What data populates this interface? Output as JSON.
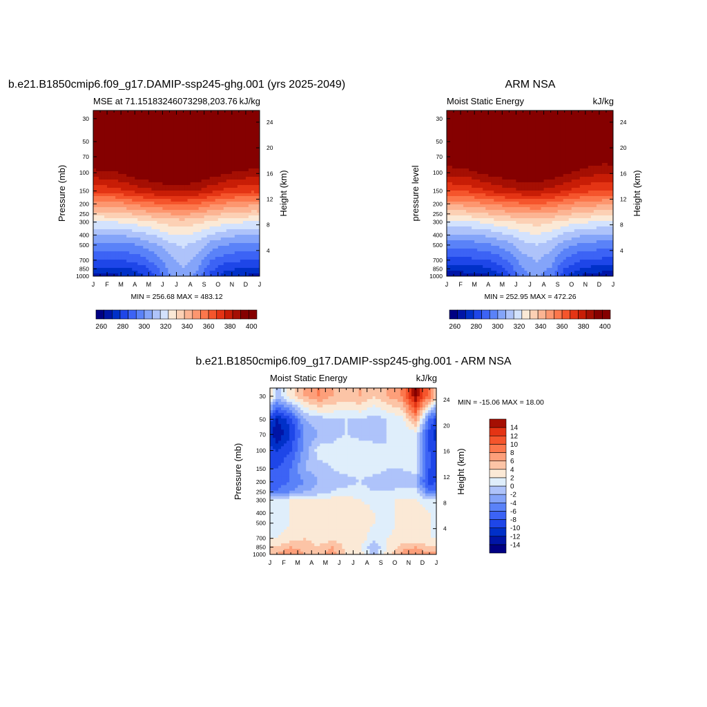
{
  "chart_data": [
    {
      "type": "heatmap",
      "title": "b.e21.B1850cmip6.f09_g17.DAMIP-ssp245-ghg.001 (yrs 2025-2049)",
      "left_subtitle": "MSE at 71.15183246073298,203.76",
      "right_subtitle": "kJ/kg",
      "ylabel": "Pressure (mb)",
      "ylabel_right": "Height (km)",
      "x_ticks": [
        "J",
        "F",
        "M",
        "A",
        "M",
        "J",
        "J",
        "A",
        "S",
        "O",
        "N",
        "D",
        "J"
      ],
      "y_ticks": [
        30,
        50,
        70,
        100,
        150,
        200,
        250,
        300,
        400,
        500,
        700,
        850,
        1000
      ],
      "y_ticks_right": [
        24,
        20,
        16,
        12,
        8,
        4
      ],
      "ylim": [
        1000,
        25
      ],
      "min_max_text": "MIN = 256.68  MAX = 483.12",
      "colorbar": {
        "orientation": "horizontal",
        "levels": [
          255,
          262.5,
          270,
          277.5,
          285,
          292.5,
          300,
          307.5,
          315,
          322.5,
          330,
          337.5,
          345,
          352.5,
          360,
          367.5,
          375,
          382.5,
          390,
          397.5,
          405
        ],
        "labels": [
          "260",
          "280",
          "300",
          "320",
          "340",
          "360",
          "380",
          "400"
        ]
      },
      "months": [
        "Jan",
        "Feb",
        "Mar",
        "Apr",
        "May",
        "Jun",
        "Jul",
        "Aug",
        "Sep",
        "Oct",
        "Nov",
        "Dec"
      ],
      "pressure_levels": [
        30,
        50,
        70,
        100,
        150,
        200,
        250,
        300,
        400,
        500,
        700,
        850,
        1000
      ],
      "values": [
        [
          423,
          425,
          430,
          432,
          433,
          434,
          434,
          432,
          430,
          428,
          425,
          423
        ],
        [
          410,
          412,
          415,
          418,
          420,
          421,
          421,
          419,
          416,
          413,
          410,
          409
        ],
        [
          401,
          402,
          406,
          409,
          411,
          413,
          413,
          411,
          407,
          404,
          401,
          400
        ],
        [
          388,
          389,
          393,
          397,
          399,
          401,
          401,
          399,
          395,
          391,
          389,
          387
        ],
        [
          370,
          371,
          375,
          379,
          382,
          384,
          384,
          382,
          377,
          373,
          370,
          369
        ],
        [
          348,
          349,
          352,
          356,
          359,
          361,
          362,
          360,
          355,
          351,
          349,
          347
        ],
        [
          334,
          335,
          337,
          340,
          343,
          345,
          346,
          344,
          340,
          337,
          335,
          334
        ],
        [
          322,
          322,
          324,
          327,
          330,
          333,
          334,
          332,
          328,
          325,
          323,
          322
        ],
        [
          307,
          307,
          309,
          312,
          316,
          321,
          323,
          320,
          314,
          310,
          308,
          307
        ],
        [
          297,
          297,
          298,
          301,
          306,
          313,
          316,
          312,
          304,
          300,
          298,
          297
        ],
        [
          285,
          285,
          286,
          289,
          296,
          305,
          310,
          305,
          293,
          288,
          286,
          285
        ],
        [
          276,
          276,
          277,
          281,
          290,
          302,
          307,
          301,
          287,
          280,
          277,
          276
        ],
        [
          268,
          268,
          270,
          275,
          286,
          299,
          304,
          298,
          282,
          273,
          270,
          268
        ]
      ]
    },
    {
      "type": "heatmap",
      "title": "ARM NSA",
      "left_subtitle": "Moist Static Energy",
      "right_subtitle": "kJ/kg",
      "ylabel": "pressure level",
      "ylabel_right": "Height (km)",
      "x_ticks": [
        "J",
        "F",
        "M",
        "A",
        "M",
        "J",
        "J",
        "A",
        "S",
        "O",
        "N",
        "D",
        "J"
      ],
      "y_ticks": [
        30,
        50,
        70,
        100,
        150,
        200,
        250,
        300,
        400,
        500,
        700,
        850,
        1000
      ],
      "y_ticks_right": [
        24,
        20,
        16,
        12,
        8,
        4
      ],
      "ylim": [
        1000,
        25
      ],
      "min_max_text": "MIN = 252.95  MAX = 472.26",
      "colorbar": {
        "orientation": "horizontal",
        "levels": [
          255,
          262.5,
          270,
          277.5,
          285,
          292.5,
          300,
          307.5,
          315,
          322.5,
          330,
          337.5,
          345,
          352.5,
          360,
          367.5,
          375,
          382.5,
          390,
          397.5,
          405
        ],
        "labels": [
          "260",
          "280",
          "300",
          "320",
          "340",
          "360",
          "380",
          "400"
        ]
      },
      "months": [
        "Jan",
        "Feb",
        "Mar",
        "Apr",
        "May",
        "Jun",
        "Jul",
        "Aug",
        "Sep",
        "Oct",
        "Nov",
        "Dec"
      ],
      "pressure_levels": [
        30,
        50,
        70,
        100,
        150,
        200,
        250,
        300,
        400,
        500,
        700,
        850,
        1000
      ],
      "values": [
        [
          420,
          423,
          428,
          430,
          431,
          432,
          432,
          430,
          428,
          424,
          418,
          416
        ],
        [
          406,
          410,
          413,
          416,
          418,
          419,
          419,
          417,
          414,
          410,
          404,
          403
        ],
        [
          398,
          401,
          404,
          407,
          409,
          411,
          411,
          409,
          405,
          400,
          396,
          395
        ],
        [
          386,
          387,
          391,
          394,
          396,
          398,
          398,
          396,
          392,
          388,
          385,
          384
        ],
        [
          368,
          369,
          373,
          377,
          380,
          382,
          382,
          380,
          375,
          371,
          368,
          367
        ],
        [
          347,
          348,
          351,
          354,
          357,
          359,
          360,
          358,
          353,
          350,
          348,
          346
        ],
        [
          333,
          334,
          336,
          339,
          342,
          344,
          345,
          343,
          339,
          336,
          334,
          333
        ],
        [
          321,
          321,
          323,
          326,
          329,
          332,
          333,
          331,
          327,
          324,
          322,
          321
        ],
        [
          306,
          306,
          308,
          311,
          315,
          320,
          322,
          319,
          313,
          309,
          307,
          306
        ],
        [
          296,
          296,
          297,
          300,
          305,
          312,
          315,
          311,
          303,
          299,
          297,
          296
        ],
        [
          283,
          283,
          284,
          287,
          294,
          304,
          308,
          303,
          292,
          286,
          284,
          283
        ],
        [
          274,
          274,
          275,
          279,
          288,
          300,
          305,
          299,
          285,
          278,
          275,
          274
        ],
        [
          264,
          265,
          266,
          271,
          283,
          296,
          302,
          295,
          279,
          270,
          266,
          264
        ]
      ]
    },
    {
      "type": "heatmap",
      "title": "b.e21.B1850cmip6.f09_g17.DAMIP-ssp245-ghg.001 - ARM NSA",
      "left_subtitle": "Moist Static Energy",
      "right_subtitle": "kJ/kg",
      "ylabel": "Pressure (mb)",
      "ylabel_right": "Height (km)",
      "x_ticks": [
        "J",
        "F",
        "M",
        "A",
        "M",
        "J",
        "J",
        "A",
        "S",
        "O",
        "N",
        "D",
        "J"
      ],
      "y_ticks": [
        30,
        50,
        70,
        100,
        150,
        200,
        250,
        300,
        400,
        500,
        700,
        850,
        1000
      ],
      "y_ticks_right": [
        24,
        20,
        16,
        12,
        8,
        4
      ],
      "ylim": [
        1000,
        25
      ],
      "min_max_text": "MIN = -15.06  MAX =  18.00",
      "colorbar": {
        "orientation": "vertical",
        "levels": [
          -16,
          -14,
          -12,
          -10,
          -8,
          -6,
          -4,
          -2,
          0,
          2,
          4,
          6,
          8,
          10,
          12,
          14,
          16
        ],
        "labels": [
          "-14",
          "-12",
          "-10",
          "-8",
          "-6",
          "-4",
          "-2",
          "0",
          "2",
          "4",
          "6",
          "8",
          "10",
          "12",
          "14"
        ]
      },
      "months": [
        "Jan",
        "Feb",
        "Mar",
        "Apr",
        "May",
        "Jun",
        "Jul",
        "Aug",
        "Sep",
        "Oct",
        "Nov",
        "Dec"
      ],
      "pressure_levels": [
        30,
        50,
        70,
        100,
        150,
        200,
        250,
        300,
        400,
        500,
        700,
        850,
        1000
      ],
      "values": [
        [
          -1,
          3,
          6,
          8,
          6,
          5,
          6,
          4,
          6,
          8,
          16,
          9
        ],
        [
          -12,
          -9,
          -2,
          -1,
          0,
          0,
          0,
          -1,
          0,
          1,
          7,
          -6
        ],
        [
          -14,
          -10,
          -4,
          -2,
          -1,
          0,
          -1,
          -2,
          0,
          0,
          1,
          -9
        ],
        [
          -10,
          -8,
          -3,
          1,
          1,
          2,
          2,
          2,
          0,
          1,
          2,
          -8
        ],
        [
          -8,
          -6,
          -2,
          -1,
          0,
          1,
          1,
          1,
          0,
          0,
          1,
          -8
        ],
        [
          -7,
          -6,
          -4,
          -2,
          -1,
          -1,
          0,
          -1,
          -2,
          -1,
          -2,
          -9
        ],
        [
          -6,
          -4,
          -2,
          -1,
          0,
          1,
          1,
          0,
          0,
          1,
          1,
          -6
        ],
        [
          1,
          2,
          2,
          2,
          3,
          3,
          2,
          1,
          2,
          2,
          2,
          1
        ],
        [
          1,
          2,
          3,
          3,
          3,
          3,
          4,
          2,
          1,
          3,
          3,
          2
        ],
        [
          1,
          2,
          3,
          3,
          3,
          3,
          3,
          2,
          1,
          3,
          3,
          2
        ],
        [
          2,
          3,
          4,
          3,
          3,
          4,
          3,
          1,
          2,
          3,
          2,
          2
        ],
        [
          4,
          6,
          5,
          4,
          6,
          3,
          2,
          -2,
          2,
          5,
          6,
          4
        ],
        [
          6,
          8,
          6,
          5,
          7,
          4,
          3,
          -1,
          3,
          7,
          8,
          7
        ]
      ]
    }
  ]
}
